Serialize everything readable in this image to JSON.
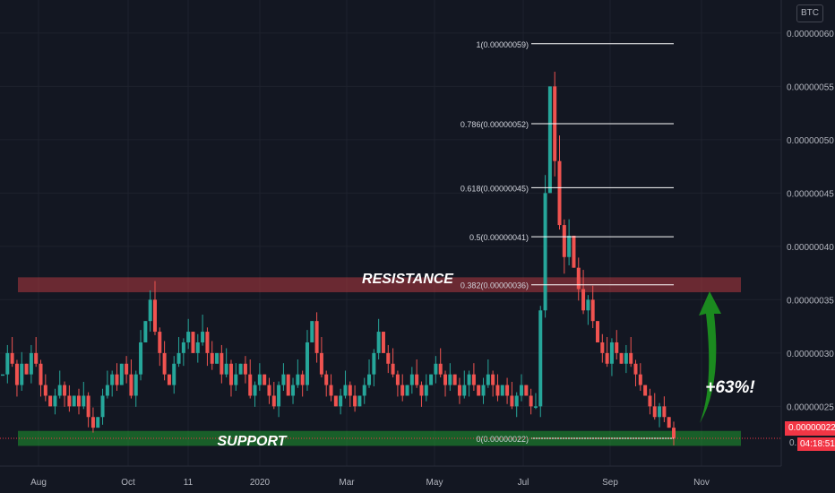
{
  "chart_data": {
    "type": "candlestick",
    "currency": "BTC",
    "y_axis": {
      "ticks": [
        "0.00000060",
        "0.00000055",
        "0.00000050",
        "0.00000045",
        "0.00000040",
        "0.00000035",
        "0.00000030",
        "0.00000025"
      ],
      "ylim": [
        1.94e-07,
        6.31e-07
      ]
    },
    "x_axis": {
      "ticks": [
        "Aug",
        "Oct",
        "11",
        "2020",
        "Mar",
        "May",
        "Jul",
        "Sep",
        "Nov"
      ]
    },
    "last_price": "0.00000022",
    "countdown": "04:18:51",
    "countdown_prefix": "0.",
    "zones": [
      {
        "name": "resistance",
        "label": "RESISTANCE",
        "from": 3.57e-07,
        "to": 3.71e-07,
        "color": "#b2383f"
      },
      {
        "name": "support",
        "label": "SUPPORT",
        "from": 2.13e-07,
        "to": 2.27e-07,
        "color": "#1e8f2e"
      }
    ],
    "fib_levels": [
      {
        "label": "1(0.00000059)",
        "value": 5.9e-07
      },
      {
        "label": "0.786(0.00000052)",
        "value": 5.15e-07
      },
      {
        "label": "0.618(0.00000045)",
        "value": 4.55e-07
      },
      {
        "label": "0.5(0.00000041)",
        "value": 4.09e-07
      },
      {
        "label": "0.382(0.00000036)",
        "value": 3.64e-07
      },
      {
        "label": "0(0.00000022)",
        "value": 2.2e-07
      }
    ],
    "annotation": {
      "text": "+63%!",
      "arrow_color": "#1b8a1f"
    },
    "close_series": [
      2.8e-07,
      3e-07,
      2.9e-07,
      2.7e-07,
      2.9e-07,
      2.8e-07,
      3e-07,
      2.9e-07,
      2.7e-07,
      2.6e-07,
      2.5e-07,
      2.6e-07,
      2.7e-07,
      2.6e-07,
      2.5e-07,
      2.6e-07,
      2.5e-07,
      2.6e-07,
      2.4e-07,
      2.3e-07,
      2.4e-07,
      2.6e-07,
      2.7e-07,
      2.8e-07,
      2.7e-07,
      2.9e-07,
      2.8e-07,
      2.6e-07,
      2.8e-07,
      3.1e-07,
      3.3e-07,
      3.5e-07,
      3.2e-07,
      3e-07,
      2.8e-07,
      2.7e-07,
      2.9e-07,
      3e-07,
      3.1e-07,
      3.2e-07,
      3e-07,
      3.1e-07,
      3.2e-07,
      3e-07,
      2.9e-07,
      3e-07,
      2.8e-07,
      2.9e-07,
      2.7e-07,
      2.8e-07,
      2.9e-07,
      2.8e-07,
      2.6e-07,
      2.7e-07,
      2.8e-07,
      2.7e-07,
      2.6e-07,
      2.5e-07,
      2.7e-07,
      2.8e-07,
      2.6e-07,
      2.7e-07,
      2.8e-07,
      2.7e-07,
      3.1e-07,
      3.3e-07,
      3e-07,
      2.8e-07,
      2.7e-07,
      2.6e-07,
      2.5e-07,
      2.6e-07,
      2.7e-07,
      2.6e-07,
      2.5e-07,
      2.6e-07,
      2.7e-07,
      2.8e-07,
      3e-07,
      3.2e-07,
      3e-07,
      2.9e-07,
      2.8e-07,
      2.7e-07,
      2.6e-07,
      2.7e-07,
      2.8e-07,
      2.7e-07,
      2.6e-07,
      2.7e-07,
      2.8e-07,
      2.9e-07,
      2.8e-07,
      2.7e-07,
      2.8e-07,
      2.7e-07,
      2.6e-07,
      2.7e-07,
      2.8e-07,
      2.7e-07,
      2.6e-07,
      2.7e-07,
      2.8e-07,
      2.7e-07,
      2.6e-07,
      2.7e-07,
      2.6e-07,
      2.5e-07,
      2.6e-07,
      2.7e-07,
      2.6e-07,
      2.5e-07,
      2.5e-07,
      3.4e-07,
      4.5e-07,
      5.5e-07,
      4.8e-07,
      4.2e-07,
      3.9e-07,
      4.1e-07,
      3.8e-07,
      3.6e-07,
      3.4e-07,
      3.5e-07,
      3.3e-07,
      3.1e-07,
      3e-07,
      2.9e-07,
      3.1e-07,
      3e-07,
      2.9e-07,
      3e-07,
      2.9e-07,
      2.8e-07,
      2.7e-07,
      2.6e-07,
      2.5e-07,
      2.4e-07,
      2.5e-07,
      2.4e-07,
      2.3e-07,
      2.2e-07
    ]
  }
}
